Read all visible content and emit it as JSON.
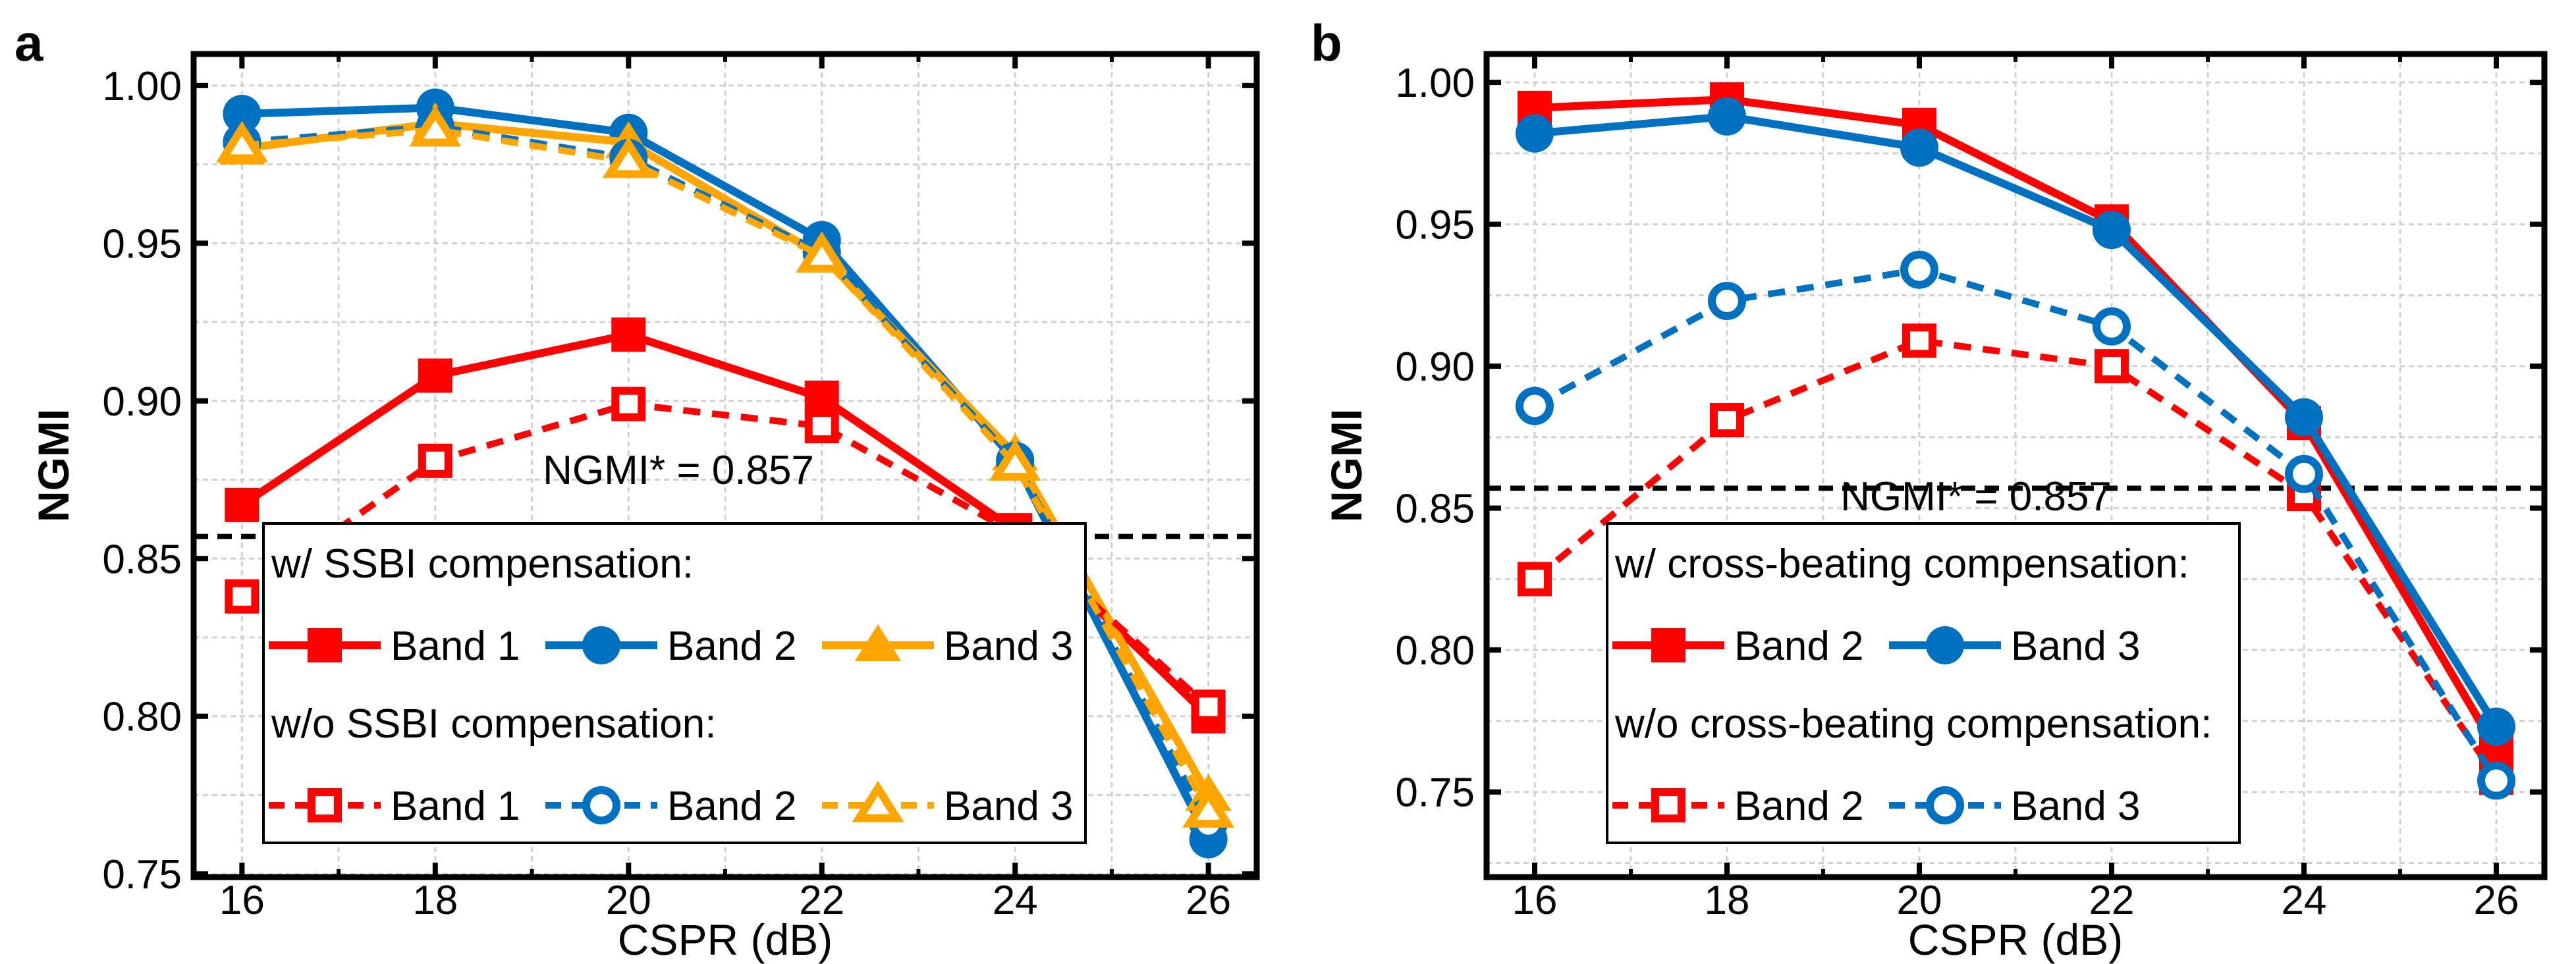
{
  "colors": {
    "red": "#FF0000",
    "blue": "#0070C0",
    "orange": "#FFA500"
  },
  "chart_data": [
    {
      "panel": "a",
      "type": "line",
      "xlabel": "CSPR (dB)",
      "ylabel": "NGMI",
      "x": [
        16,
        18,
        20,
        22,
        24,
        26
      ],
      "xlim": [
        15.5,
        26.5
      ],
      "ylim": [
        0.749,
        1.01
      ],
      "xticks": [
        "16",
        "18",
        "20",
        "22",
        "24",
        "26"
      ],
      "yticks": [
        "0.75",
        "0.80",
        "0.85",
        "0.90",
        "0.95",
        "1.00"
      ],
      "grid": true,
      "threshold": {
        "value": 0.857,
        "label": "NGMI* = 0.857"
      },
      "legend": {
        "placement": "bottom-center",
        "group1": "w/   SSBI compensation:",
        "group2": "w/o SSBI compensation:"
      },
      "series": [
        {
          "name": "Band 1",
          "group": 1,
          "color": "red",
          "marker": "square",
          "filled": true,
          "dashed": false,
          "values": [
            0.867,
            0.908,
            0.921,
            0.901,
            0.859,
            0.8
          ]
        },
        {
          "name": "Band 2",
          "group": 1,
          "color": "blue",
          "marker": "circle",
          "filled": true,
          "dashed": false,
          "values": [
            0.991,
            0.993,
            0.985,
            0.951,
            0.881,
            0.761
          ]
        },
        {
          "name": "Band 3",
          "group": 1,
          "color": "orange",
          "marker": "triangle",
          "filled": true,
          "dashed": false,
          "values": [
            0.98,
            0.988,
            0.982,
            0.946,
            0.883,
            0.775
          ]
        },
        {
          "name": "Band 1",
          "group": 2,
          "color": "red",
          "marker": "square",
          "filled": false,
          "dashed": true,
          "values": [
            0.838,
            0.881,
            0.899,
            0.892,
            0.858,
            0.803
          ]
        },
        {
          "name": "Band 2",
          "group": 2,
          "color": "blue",
          "marker": "circle",
          "filled": false,
          "dashed": true,
          "values": [
            0.982,
            0.987,
            0.977,
            0.947,
            0.881,
            0.766
          ]
        },
        {
          "name": "Band 3",
          "group": 2,
          "color": "orange",
          "marker": "triangle",
          "filled": false,
          "dashed": true,
          "values": [
            0.981,
            0.986,
            0.976,
            0.946,
            0.88,
            0.77
          ]
        }
      ]
    },
    {
      "panel": "b",
      "type": "line",
      "xlabel": "CSPR (dB)",
      "ylabel": "NGMI",
      "x": [
        16,
        18,
        20,
        22,
        24,
        26
      ],
      "xlim": [
        15.5,
        26.5
      ],
      "ylim": [
        0.72,
        1.01
      ],
      "xticks": [
        "16",
        "18",
        "20",
        "22",
        "24",
        "26"
      ],
      "yticks": [
        "0.75",
        "0.80",
        "0.85",
        "0.90",
        "0.95",
        "1.00"
      ],
      "grid": true,
      "threshold": {
        "value": 0.857,
        "label": "NGMI* = 0.857"
      },
      "legend": {
        "placement": "bottom-center",
        "group1": "w/   cross-beating compensation:",
        "group2": "w/o cross-beating compensation:"
      },
      "series": [
        {
          "name": "Band 2",
          "group": 1,
          "color": "red",
          "marker": "square",
          "filled": true,
          "dashed": false,
          "values": [
            0.991,
            0.994,
            0.985,
            0.951,
            0.88,
            0.765
          ]
        },
        {
          "name": "Band 3",
          "group": 1,
          "color": "blue",
          "marker": "circle",
          "filled": true,
          "dashed": false,
          "values": [
            0.982,
            0.988,
            0.977,
            0.948,
            0.882,
            0.773
          ]
        },
        {
          "name": "Band 2",
          "group": 2,
          "color": "red",
          "marker": "square",
          "filled": false,
          "dashed": true,
          "values": [
            0.825,
            0.881,
            0.909,
            0.9,
            0.855,
            0.755
          ]
        },
        {
          "name": "Band 3",
          "group": 2,
          "color": "blue",
          "marker": "circle",
          "filled": false,
          "dashed": true,
          "values": [
            0.886,
            0.923,
            0.934,
            0.914,
            0.862,
            0.754
          ]
        }
      ]
    }
  ]
}
